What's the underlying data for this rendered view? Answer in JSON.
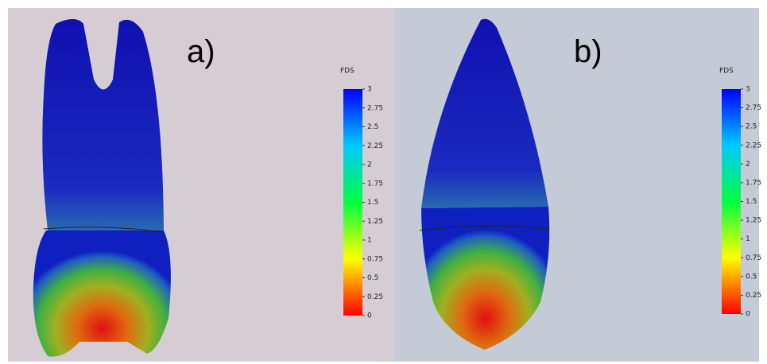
{
  "panels": [
    {
      "label": "a)",
      "legend": {
        "title": "FDS",
        "ticks": [
          3,
          2.75,
          2.5,
          2.25,
          2,
          1.75,
          1.5,
          1.25,
          1,
          0.75,
          0.5,
          0.25,
          0
        ]
      }
    },
    {
      "label": "b)",
      "legend": {
        "title": "FDS",
        "ticks": [
          3,
          2.75,
          2.5,
          2.25,
          2,
          1.75,
          1.5,
          1.25,
          1,
          0.75,
          0.5,
          0.25,
          0
        ]
      }
    }
  ]
}
